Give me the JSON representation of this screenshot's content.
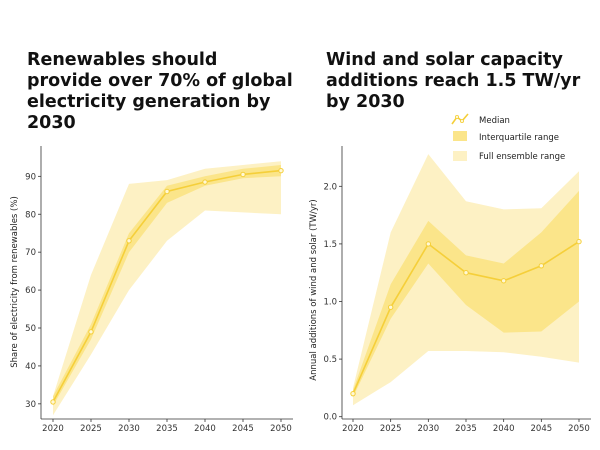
{
  "colors": {
    "median": "#f5cf3a",
    "iqr": "#fbe58a",
    "full": "#fdf1c4",
    "axis": "#333333"
  },
  "legend": {
    "median": "Median",
    "iqr": "Interquartile range",
    "full": "Full ensemble range"
  },
  "chart_data": [
    {
      "type": "area",
      "title": "Renewables should provide over 70% of global electricity generation by 2030",
      "xlabel": "",
      "ylabel": "Share of electricity from renewables (%)",
      "x": [
        2020,
        2025,
        2030,
        2035,
        2040,
        2045,
        2050
      ],
      "xticks": [
        "2020",
        "2025",
        "2030",
        "2035",
        "2040",
        "2045",
        "2050"
      ],
      "yticks": [
        "30",
        "40",
        "50",
        "60",
        "70",
        "80",
        "90"
      ],
      "ylim": [
        26,
        98
      ],
      "series": [
        {
          "name": "Median",
          "values": [
            30.5,
            49,
            73,
            86,
            88.5,
            90.5,
            91.5
          ]
        },
        {
          "name": "Interquartile range",
          "low": [
            29.5,
            47,
            70,
            83,
            87.5,
            89.5,
            90
          ],
          "high": [
            32,
            51,
            75,
            87.5,
            90,
            92,
            93
          ]
        },
        {
          "name": "Full ensemble range",
          "low": [
            27,
            43,
            60,
            73,
            81,
            80.5,
            80
          ],
          "high": [
            32,
            64,
            88,
            89,
            92,
            93,
            94
          ]
        }
      ]
    },
    {
      "type": "area",
      "title": "Wind and solar capacity additions reach 1.5 TW/yr by 2030",
      "xlabel": "",
      "ylabel": "Annual additions of wind and solar (TW/yr)",
      "x": [
        2020,
        2025,
        2030,
        2035,
        2040,
        2045,
        2050
      ],
      "xticks": [
        "2020",
        "2025",
        "2030",
        "2035",
        "2040",
        "2045",
        "2050"
      ],
      "yticks": [
        "0.0",
        "0.5",
        "1.0",
        "1.5",
        "2.0"
      ],
      "ylim": [
        -0.02,
        2.35
      ],
      "series": [
        {
          "name": "Median",
          "values": [
            0.2,
            0.95,
            1.5,
            1.25,
            1.18,
            1.31,
            1.52
          ]
        },
        {
          "name": "Interquartile range",
          "low": [
            0.17,
            0.85,
            1.33,
            0.97,
            0.73,
            0.74,
            1.0
          ],
          "high": [
            0.23,
            1.15,
            1.7,
            1.4,
            1.33,
            1.6,
            1.96
          ]
        },
        {
          "name": "Full ensemble range",
          "low": [
            0.1,
            0.3,
            0.57,
            0.57,
            0.56,
            0.52,
            0.47
          ],
          "high": [
            0.25,
            1.6,
            2.28,
            1.87,
            1.8,
            1.81,
            2.13
          ]
        }
      ]
    }
  ]
}
